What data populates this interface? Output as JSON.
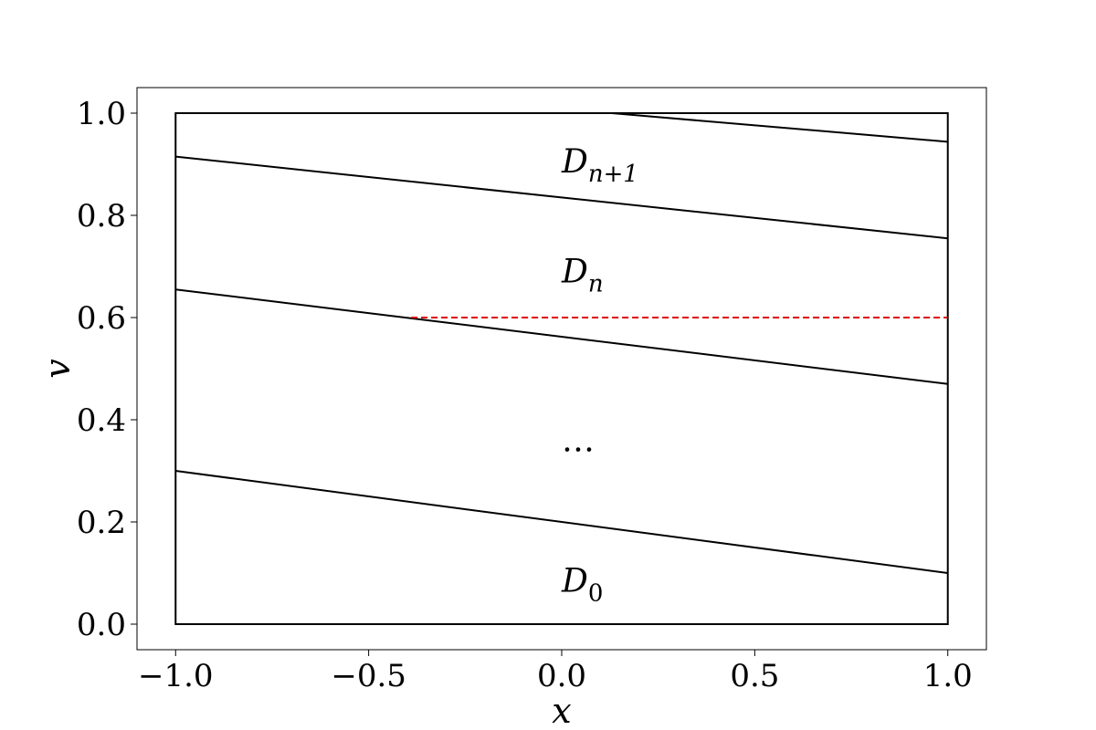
{
  "chart_data": {
    "type": "line",
    "title": "",
    "xlabel": "x",
    "ylabel": "v",
    "xlim": [
      -1.1,
      1.1
    ],
    "ylim": [
      -0.05,
      1.05
    ],
    "xticks": [
      -1.0,
      -0.5,
      0.0,
      0.5,
      1.0
    ],
    "xtick_labels": [
      "−1.0",
      "−0.5",
      "0.0",
      "0.5",
      "1.0"
    ],
    "yticks": [
      0.0,
      0.2,
      0.4,
      0.6,
      0.8,
      1.0
    ],
    "ytick_labels": [
      "0.0",
      "0.2",
      "0.4",
      "0.6",
      "0.8",
      "1.0"
    ],
    "grid": false,
    "domain_box": {
      "x": [
        -1.0,
        1.0
      ],
      "y": [
        0.0,
        1.0
      ],
      "color": "#000000"
    },
    "boundary_lines": [
      {
        "x": [
          -1.0,
          1.0
        ],
        "y": [
          0.3,
          0.1
        ],
        "color": "#000000"
      },
      {
        "x": [
          -1.0,
          1.0
        ],
        "y": [
          0.655,
          0.47
        ],
        "color": "#000000"
      },
      {
        "x": [
          -1.0,
          1.0
        ],
        "y": [
          0.915,
          0.755
        ],
        "color": "#000000"
      },
      {
        "x": [
          0.13,
          1.0
        ],
        "y": [
          1.0,
          0.944
        ],
        "color": "#000000"
      }
    ],
    "dashed_line": {
      "x": [
        -0.39,
        1.0
      ],
      "y": [
        0.6,
        0.6
      ],
      "color": "#dd0000"
    },
    "annotations": [
      {
        "main": "D",
        "sub": "0",
        "x": 0.0,
        "y": 0.085
      },
      {
        "main": "…",
        "sub": "",
        "x": 0.0,
        "y": 0.36
      },
      {
        "main": "D",
        "sub": "n",
        "x": 0.0,
        "y": 0.69
      },
      {
        "main": "D",
        "sub": "n+1",
        "x": 0.0,
        "y": 0.905
      }
    ]
  }
}
